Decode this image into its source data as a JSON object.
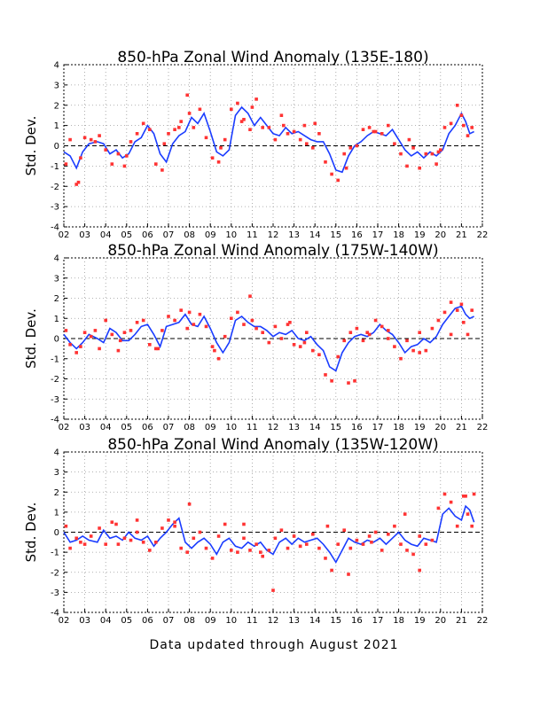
{
  "footer": "Data updated through August 2021",
  "chart_data": [
    {
      "type": "scatter",
      "title": "850-hPa Zonal Wind Anomaly (135E-180)",
      "ylabel": "Std. Dev.",
      "ylim": [
        -4,
        4
      ],
      "yticks": [
        "-4",
        "-3",
        "-2",
        "-1",
        "0",
        "1",
        "2",
        "3",
        "4"
      ],
      "xticks": [
        "02",
        "03",
        "04",
        "05",
        "06",
        "07",
        "08",
        "09",
        "10",
        "11",
        "12",
        "13",
        "14",
        "15",
        "16",
        "17",
        "18",
        "19",
        "20",
        "21",
        "22"
      ],
      "xlim": [
        2002,
        2022
      ],
      "grid": true,
      "series": [
        {
          "type": "line",
          "color": "#1a3cff",
          "x": [
            2002.0,
            2002.3,
            2002.6,
            2002.9,
            2003.2,
            2003.6,
            2003.9,
            2004.2,
            2004.5,
            2004.8,
            2005.1,
            2005.4,
            2005.7,
            2006.0,
            2006.3,
            2006.6,
            2006.9,
            2007.2,
            2007.5,
            2007.8,
            2008.1,
            2008.4,
            2008.7,
            2009.0,
            2009.3,
            2009.6,
            2009.9,
            2010.2,
            2010.5,
            2010.8,
            2011.1,
            2011.4,
            2011.7,
            2012.0,
            2012.3,
            2012.6,
            2012.9,
            2013.2,
            2013.5,
            2013.8,
            2014.1,
            2014.4,
            2014.7,
            2015.0,
            2015.3,
            2015.6,
            2015.9,
            2016.2,
            2016.5,
            2016.8,
            2017.1,
            2017.4,
            2017.7,
            2018.0,
            2018.3,
            2018.6,
            2018.9,
            2019.2,
            2019.5,
            2019.8,
            2020.1,
            2020.4,
            2020.7,
            2021.0,
            2021.2,
            2021.4,
            2021.6
          ],
          "y": [
            -0.3,
            -0.5,
            -1.1,
            -0.3,
            0.1,
            0.2,
            0.1,
            -0.4,
            -0.2,
            -0.6,
            -0.4,
            0.2,
            0.4,
            1.0,
            0.6,
            -0.4,
            -0.8,
            0.1,
            0.5,
            0.7,
            1.4,
            1.1,
            1.6,
            0.7,
            -0.3,
            -0.5,
            -0.2,
            1.5,
            1.9,
            1.6,
            1.0,
            1.4,
            1.0,
            0.6,
            0.5,
            0.9,
            0.6,
            0.7,
            0.5,
            0.3,
            0.2,
            0.2,
            -0.4,
            -1.2,
            -1.3,
            -0.5,
            0.0,
            0.2,
            0.5,
            0.7,
            0.6,
            0.5,
            0.8,
            0.3,
            -0.2,
            -0.5,
            -0.3,
            -0.6,
            -0.3,
            -0.5,
            -0.2,
            0.6,
            1.0,
            1.6,
            1.2,
            0.6,
            0.7
          ]
        },
        {
          "type": "points",
          "color": "#ff3333",
          "x": [
            2002.1,
            2002.3,
            2002.6,
            2002.8,
            2003.0,
            2003.3,
            2003.7,
            2004.0,
            2004.3,
            2004.6,
            2004.9,
            2005.2,
            2005.5,
            2005.8,
            2006.1,
            2006.4,
            2006.7,
            2007.0,
            2007.3,
            2007.6,
            2007.9,
            2008.2,
            2008.5,
            2008.8,
            2009.1,
            2009.4,
            2009.7,
            2010.0,
            2010.3,
            2010.6,
            2010.9,
            2011.2,
            2011.5,
            2011.8,
            2012.1,
            2012.4,
            2012.7,
            2013.0,
            2013.3,
            2013.6,
            2013.9,
            2014.2,
            2014.5,
            2014.8,
            2015.1,
            2015.4,
            2015.7,
            2016.0,
            2016.3,
            2016.6,
            2016.9,
            2017.2,
            2017.5,
            2017.8,
            2018.1,
            2018.4,
            2018.7,
            2019.0,
            2019.3,
            2019.6,
            2019.9,
            2020.2,
            2020.5,
            2020.8,
            2021.1,
            2021.3,
            2021.5,
            2008.0,
            2011.0,
            2014.0,
            2003.5,
            2006.8,
            2009.5,
            2012.5,
            2015.5,
            2018.5,
            2020.0,
            2005.0,
            2010.5,
            2002.7,
            2007.5,
            2013.5,
            2016.8,
            2019.8,
            2021.0
          ],
          "y": [
            -0.9,
            0.3,
            -1.9,
            -0.6,
            0.4,
            0.3,
            0.5,
            -0.2,
            -0.9,
            -0.4,
            -1.0,
            0.2,
            0.6,
            1.1,
            0.8,
            -0.9,
            -1.2,
            0.6,
            0.8,
            1.2,
            2.5,
            0.9,
            1.8,
            0.4,
            -0.6,
            -0.8,
            0.3,
            1.8,
            2.1,
            1.3,
            0.8,
            2.3,
            0.9,
            0.9,
            0.3,
            1.5,
            0.6,
            0.7,
            0.3,
            0.1,
            -0.1,
            0.6,
            -0.8,
            -1.4,
            -1.7,
            -0.4,
            -0.1,
            0.0,
            0.8,
            0.9,
            0.7,
            0.6,
            1.0,
            0.1,
            -0.4,
            -1.0,
            -0.1,
            -1.1,
            -0.4,
            -0.4,
            -0.3,
            0.9,
            1.1,
            2.0,
            1.0,
            0.5,
            0.9,
            1.6,
            1.9,
            1.1,
            0.2,
            0.1,
            -0.1,
            1.0,
            -1.1,
            0.3,
            -0.2,
            -0.5,
            1.2,
            -1.8,
            0.9,
            1.0,
            0.7,
            -0.9,
            1.5
          ]
        }
      ]
    },
    {
      "type": "scatter",
      "title": "850-hPa Zonal Wind Anomaly (175W-140W)",
      "ylabel": "Std. Dev.",
      "ylim": [
        -4,
        4
      ],
      "yticks": [
        "-4",
        "-3",
        "-2",
        "-1",
        "0",
        "1",
        "2",
        "3",
        "4"
      ],
      "xticks": [
        "02",
        "03",
        "04",
        "05",
        "06",
        "07",
        "08",
        "09",
        "10",
        "11",
        "12",
        "13",
        "14",
        "15",
        "16",
        "17",
        "18",
        "19",
        "20",
        "21",
        "22"
      ],
      "xlim": [
        2002,
        2022
      ],
      "grid": true,
      "series": [
        {
          "type": "line",
          "color": "#1a3cff",
          "x": [
            2002.0,
            2002.3,
            2002.6,
            2002.9,
            2003.2,
            2003.6,
            2003.9,
            2004.2,
            2004.5,
            2004.8,
            2005.1,
            2005.4,
            2005.7,
            2006.0,
            2006.3,
            2006.6,
            2006.9,
            2007.2,
            2007.5,
            2007.8,
            2008.1,
            2008.4,
            2008.7,
            2009.0,
            2009.3,
            2009.6,
            2009.9,
            2010.2,
            2010.5,
            2010.8,
            2011.1,
            2011.4,
            2011.7,
            2012.0,
            2012.3,
            2012.6,
            2012.9,
            2013.2,
            2013.5,
            2013.8,
            2014.1,
            2014.4,
            2014.7,
            2015.0,
            2015.3,
            2015.6,
            2015.9,
            2016.2,
            2016.5,
            2016.8,
            2017.1,
            2017.4,
            2017.7,
            2018.0,
            2018.3,
            2018.6,
            2018.9,
            2019.2,
            2019.5,
            2019.8,
            2020.1,
            2020.4,
            2020.7,
            2021.0,
            2021.2,
            2021.4,
            2021.6
          ],
          "y": [
            0.2,
            -0.2,
            -0.5,
            -0.2,
            0.2,
            0.0,
            -0.2,
            0.5,
            0.3,
            -0.1,
            -0.1,
            0.2,
            0.6,
            0.7,
            0.2,
            -0.4,
            0.6,
            0.7,
            0.8,
            1.2,
            0.7,
            0.6,
            1.1,
            0.5,
            -0.2,
            -0.7,
            -0.2,
            0.9,
            1.1,
            0.8,
            0.6,
            0.6,
            0.4,
            0.1,
            0.3,
            0.2,
            0.4,
            0.0,
            -0.1,
            0.1,
            -0.3,
            -0.6,
            -1.4,
            -1.6,
            -0.7,
            -0.2,
            0.1,
            0.2,
            0.1,
            0.3,
            0.7,
            0.4,
            0.2,
            -0.2,
            -0.7,
            -0.4,
            -0.3,
            0.0,
            -0.2,
            0.1,
            0.7,
            1.1,
            1.5,
            1.6,
            1.2,
            1.0,
            1.1
          ]
        },
        {
          "type": "points",
          "color": "#ff3333",
          "x": [
            2002.1,
            2002.3,
            2002.6,
            2002.8,
            2003.0,
            2003.3,
            2003.7,
            2004.0,
            2004.3,
            2004.6,
            2004.9,
            2005.2,
            2005.5,
            2005.8,
            2006.1,
            2006.4,
            2006.7,
            2007.0,
            2007.3,
            2007.6,
            2007.9,
            2008.2,
            2008.5,
            2008.8,
            2009.1,
            2009.4,
            2009.7,
            2010.0,
            2010.3,
            2010.6,
            2010.9,
            2011.2,
            2011.5,
            2011.8,
            2012.1,
            2012.4,
            2012.7,
            2013.0,
            2013.3,
            2013.6,
            2013.9,
            2014.2,
            2014.5,
            2014.8,
            2015.1,
            2015.4,
            2015.7,
            2016.0,
            2016.3,
            2016.6,
            2016.9,
            2017.2,
            2017.5,
            2017.8,
            2018.1,
            2018.4,
            2018.7,
            2019.0,
            2019.3,
            2019.6,
            2019.9,
            2020.2,
            2020.5,
            2020.8,
            2021.1,
            2021.3,
            2021.5,
            2015.6,
            2015.9,
            2011.0,
            2008.0,
            2003.5,
            2006.5,
            2009.2,
            2012.8,
            2016.5,
            2019.0,
            2021.0,
            2004.7,
            2013.5,
            2017.5,
            2020.5
          ],
          "y": [
            0.4,
            -0.3,
            -0.7,
            -0.4,
            0.3,
            0.1,
            -0.5,
            0.9,
            0.2,
            -0.6,
            0.3,
            0.4,
            0.8,
            0.9,
            -0.3,
            -0.5,
            0.4,
            1.1,
            0.9,
            1.4,
            0.5,
            0.7,
            1.2,
            0.6,
            -0.4,
            -1.0,
            0.1,
            1.0,
            1.3,
            0.7,
            2.1,
            0.5,
            0.3,
            -0.2,
            0.6,
            0.0,
            0.7,
            -0.3,
            -0.4,
            0.3,
            -0.6,
            -0.8,
            -1.8,
            -2.1,
            -0.9,
            -0.1,
            0.3,
            0.5,
            -0.1,
            0.2,
            0.9,
            0.6,
            0.0,
            -0.4,
            -1.0,
            -0.1,
            -0.6,
            0.3,
            -0.6,
            0.5,
            0.9,
            1.3,
            1.8,
            1.4,
            0.8,
            0.2,
            1.4,
            -2.2,
            -2.1,
            0.9,
            1.3,
            0.4,
            -0.5,
            -0.6,
            0.8,
            0.3,
            -0.7,
            1.7,
            -0.1,
            -0.2,
            0.4,
            0.2
          ]
        }
      ]
    },
    {
      "type": "scatter",
      "title": "850-hPa Zonal Wind Anomaly (135W-120W)",
      "ylabel": "Std. Dev.",
      "ylim": [
        -4,
        4
      ],
      "yticks": [
        "-4",
        "-3",
        "-2",
        "-1",
        "0",
        "1",
        "2",
        "3",
        "4"
      ],
      "xticks": [
        "02",
        "03",
        "04",
        "05",
        "06",
        "07",
        "08",
        "09",
        "10",
        "11",
        "12",
        "13",
        "14",
        "15",
        "16",
        "17",
        "18",
        "19",
        "20",
        "21",
        "22"
      ],
      "xlim": [
        2002,
        2022
      ],
      "grid": true,
      "series": [
        {
          "type": "line",
          "color": "#1a3cff",
          "x": [
            2002.0,
            2002.3,
            2002.6,
            2002.9,
            2003.2,
            2003.6,
            2003.9,
            2004.2,
            2004.5,
            2004.8,
            2005.1,
            2005.4,
            2005.7,
            2006.0,
            2006.3,
            2006.6,
            2006.9,
            2007.2,
            2007.5,
            2007.8,
            2008.1,
            2008.4,
            2008.7,
            2009.0,
            2009.3,
            2009.6,
            2009.9,
            2010.2,
            2010.5,
            2010.8,
            2011.1,
            2011.4,
            2011.7,
            2012.0,
            2012.3,
            2012.6,
            2012.9,
            2013.2,
            2013.5,
            2013.8,
            2014.1,
            2014.4,
            2014.7,
            2015.0,
            2015.3,
            2015.6,
            2015.9,
            2016.2,
            2016.5,
            2016.8,
            2017.1,
            2017.4,
            2017.7,
            2018.0,
            2018.3,
            2018.6,
            2018.9,
            2019.2,
            2019.5,
            2019.8,
            2020.1,
            2020.4,
            2020.7,
            2021.0,
            2021.2,
            2021.4,
            2021.6
          ],
          "y": [
            0.0,
            -0.5,
            -0.4,
            -0.2,
            -0.4,
            -0.5,
            0.1,
            -0.3,
            -0.2,
            -0.4,
            0.0,
            -0.3,
            -0.4,
            -0.2,
            -0.7,
            -0.3,
            0.0,
            0.4,
            0.7,
            -0.5,
            -0.8,
            -0.5,
            -0.3,
            -0.6,
            -1.1,
            -0.5,
            -0.3,
            -0.7,
            -0.8,
            -0.5,
            -0.7,
            -0.5,
            -0.9,
            -1.1,
            -0.5,
            -0.3,
            -0.6,
            -0.3,
            -0.5,
            -0.4,
            -0.3,
            -0.6,
            -1.0,
            -1.5,
            -0.9,
            -0.3,
            -0.5,
            -0.6,
            -0.4,
            -0.5,
            -0.3,
            -0.6,
            -0.3,
            0.0,
            -0.4,
            -0.6,
            -0.7,
            -0.3,
            -0.4,
            -0.5,
            0.9,
            1.2,
            0.8,
            0.6,
            1.3,
            1.1,
            0.5
          ]
        },
        {
          "type": "points",
          "color": "#ff3333",
          "x": [
            2002.1,
            2002.3,
            2002.6,
            2002.8,
            2003.0,
            2003.3,
            2003.7,
            2004.0,
            2004.3,
            2004.6,
            2004.9,
            2005.2,
            2005.5,
            2005.8,
            2006.1,
            2006.4,
            2006.7,
            2007.0,
            2007.3,
            2007.6,
            2007.9,
            2008.2,
            2008.5,
            2008.8,
            2009.1,
            2009.4,
            2009.7,
            2010.0,
            2010.3,
            2010.6,
            2010.9,
            2011.2,
            2011.5,
            2011.8,
            2012.1,
            2012.4,
            2012.7,
            2013.0,
            2013.3,
            2013.6,
            2013.9,
            2014.2,
            2014.5,
            2014.8,
            2015.1,
            2015.4,
            2015.7,
            2016.0,
            2016.3,
            2016.6,
            2016.9,
            2017.2,
            2017.5,
            2017.8,
            2018.1,
            2018.4,
            2018.7,
            2019.0,
            2019.3,
            2019.6,
            2019.9,
            2020.2,
            2020.5,
            2020.8,
            2021.1,
            2021.3,
            2021.5,
            2012.0,
            2015.6,
            2008.0,
            2018.3,
            2019.0,
            2021.2,
            2021.6,
            2004.5,
            2007.3,
            2010.6,
            2013.3,
            2016.7,
            2005.5,
            2011.4,
            2014.6
          ],
          "y": [
            0.3,
            -0.8,
            -0.3,
            -0.5,
            -0.6,
            -0.2,
            0.2,
            -0.6,
            0.5,
            -0.6,
            -0.3,
            -0.4,
            0.0,
            -0.5,
            -0.9,
            -0.5,
            0.2,
            0.6,
            0.3,
            -0.8,
            -1.0,
            -0.3,
            0.0,
            -0.8,
            -1.3,
            -0.2,
            0.4,
            -0.9,
            -1.0,
            -0.3,
            -0.9,
            -0.6,
            -1.2,
            -0.9,
            -0.3,
            0.1,
            -0.8,
            -0.2,
            -0.7,
            -0.6,
            -0.1,
            -0.8,
            -1.3,
            -1.9,
            -0.6,
            0.1,
            -0.8,
            -0.4,
            -0.6,
            -0.2,
            0.0,
            -0.9,
            -0.1,
            0.3,
            -0.6,
            -0.9,
            -1.1,
            -0.2,
            -0.6,
            -0.4,
            1.2,
            1.9,
            1.5,
            0.3,
            1.8,
            0.9,
            0.3,
            -2.9,
            -2.1,
            1.4,
            0.9,
            -1.9,
            1.8,
            1.9,
            0.4,
            0.5,
            0.4,
            -0.7,
            -0.5,
            0.6,
            -1.0,
            0.3
          ]
        }
      ]
    }
  ]
}
